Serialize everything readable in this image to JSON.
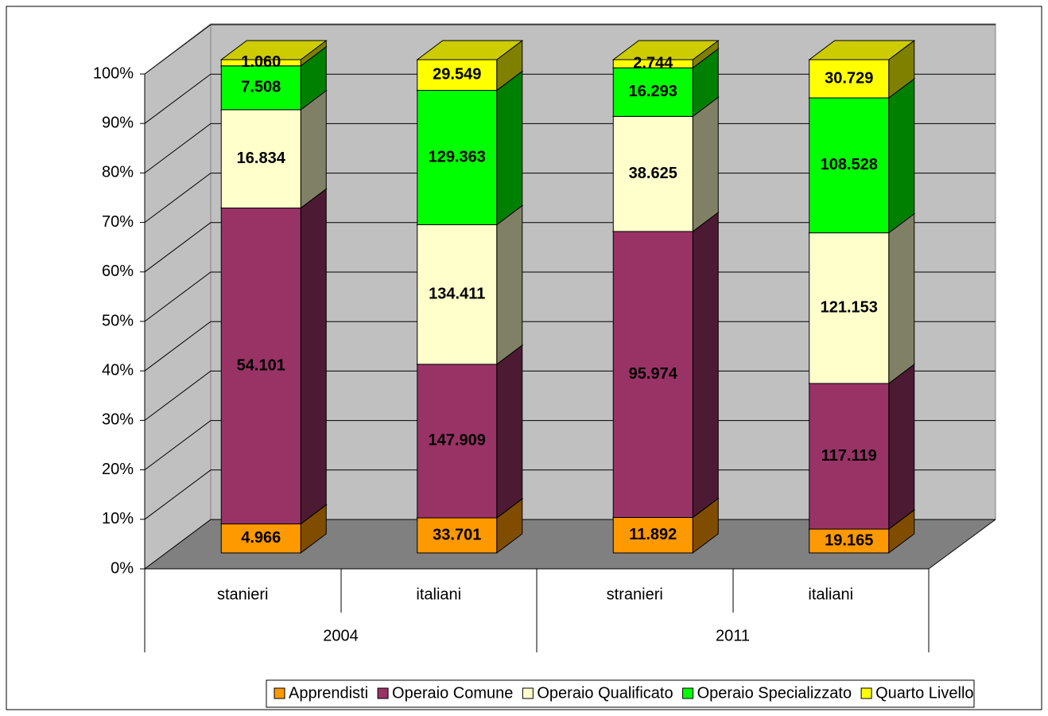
{
  "chart_data": {
    "type": "bar",
    "stacking": "percent",
    "categories": [
      "stanieri",
      "italiani",
      "stranieri",
      "italiani"
    ],
    "groups": [
      "2004",
      "2011"
    ],
    "series": [
      {
        "name": "Apprendisti",
        "color": "#ff9900",
        "values": [
          4966,
          33701,
          11892,
          19165
        ],
        "value_labels": [
          "4.966",
          "33.701",
          "11.892",
          "19.165"
        ]
      },
      {
        "name": "Operaio Comune",
        "color": "#993366",
        "values": [
          54101,
          147909,
          95974,
          117119
        ],
        "value_labels": [
          "54.101",
          "147.909",
          "95.974",
          "117.119"
        ]
      },
      {
        "name": "Operaio Qualificato",
        "color": "#ffffcc",
        "values": [
          16834,
          134411,
          38625,
          121153
        ],
        "value_labels": [
          "16.834",
          "134.411",
          "38.625",
          "121.153"
        ]
      },
      {
        "name": "Operaio Specializzato",
        "color": "#00ff00",
        "values": [
          7508,
          129363,
          16293,
          108528
        ],
        "value_labels": [
          "7.508",
          "129.363",
          "16.293",
          "108.528"
        ]
      },
      {
        "name": "Quarto Livello",
        "color": "#ffff00",
        "values": [
          1060,
          29549,
          2744,
          30729
        ],
        "value_labels": [
          "1.060",
          "29.549",
          "2.744",
          "30.729"
        ]
      }
    ],
    "ylim": [
      0,
      100
    ],
    "yticks": [
      {
        "value": 0,
        "label": "0%"
      },
      {
        "value": 10,
        "label": "10%"
      },
      {
        "value": 20,
        "label": "20%"
      },
      {
        "value": 30,
        "label": "30%"
      },
      {
        "value": 40,
        "label": "40%"
      },
      {
        "value": 50,
        "label": "50%"
      },
      {
        "value": 60,
        "label": "60%"
      },
      {
        "value": 70,
        "label": "70%"
      },
      {
        "value": 80,
        "label": "80%"
      },
      {
        "value": 90,
        "label": "90%"
      },
      {
        "value": 100,
        "label": "100%"
      }
    ],
    "grid": true,
    "legend": "bottom"
  }
}
